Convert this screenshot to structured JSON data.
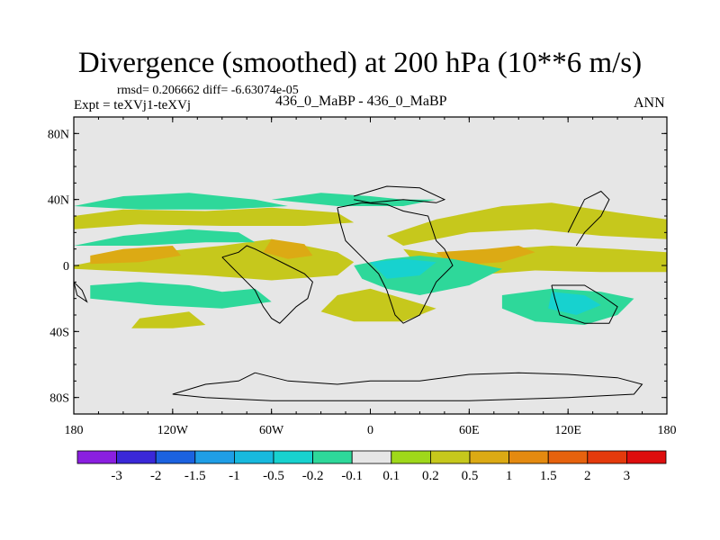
{
  "header": {
    "title": "Divergence (smoothed) at 200 hPa (10**6 m/s)",
    "stats": "rmsd= 0.206662 diff= -6.63074e-05",
    "experiment": "Expt = teXVj1-teXVj",
    "period_label": "436_0_MaBP - 436_0_MaBP",
    "season": "ANN"
  },
  "chart_data": {
    "type": "heatmap",
    "title": "Divergence (smoothed) at 200 hPa (10**6 m/s)",
    "projection": "cylindrical equidistant",
    "xlim": [
      -180,
      180
    ],
    "ylim": [
      -90,
      90
    ],
    "x_ticks": [
      {
        "value": -180,
        "label": "180"
      },
      {
        "value": -120,
        "label": "120W"
      },
      {
        "value": -60,
        "label": "60W"
      },
      {
        "value": 0,
        "label": "0"
      },
      {
        "value": 60,
        "label": "60E"
      },
      {
        "value": 120,
        "label": "120E"
      },
      {
        "value": 180,
        "label": "180"
      }
    ],
    "y_ticks": [
      {
        "value": 80,
        "label": "80N"
      },
      {
        "value": 40,
        "label": "40N"
      },
      {
        "value": 0,
        "label": "0"
      },
      {
        "value": -40,
        "label": "40S"
      },
      {
        "value": -80,
        "label": "80S"
      }
    ],
    "colorbar": {
      "boundaries": [
        "-3",
        "-2",
        "-1.5",
        "-1",
        "-0.5",
        "-0.2",
        "-0.1",
        "0.1",
        "0.2",
        "0.5",
        "1",
        "1.5",
        "2",
        "3"
      ],
      "colors": [
        "#8a1fe0",
        "#3a28d8",
        "#1b62e0",
        "#1f9ee6",
        "#17b9de",
        "#17d2cf",
        "#2ed89a",
        "#e6e6e6",
        "#9fd81a",
        "#c6c81c",
        "#dcaa14",
        "#e48a10",
        "#e6620e",
        "#e43a0c",
        "#de0e0e"
      ]
    },
    "regions": [
      {
        "level": 0.2,
        "points": [
          [
            -180,
            0
          ],
          [
            -150,
            6
          ],
          [
            -120,
            9
          ],
          [
            -90,
            12
          ],
          [
            -60,
            16
          ],
          [
            -40,
            12
          ],
          [
            -20,
            8
          ],
          [
            -10,
            2
          ],
          [
            -20,
            -6
          ],
          [
            -60,
            -9
          ],
          [
            -100,
            -6
          ],
          [
            -140,
            -4
          ],
          [
            -180,
            -2
          ]
        ]
      },
      {
        "level": 0.5,
        "points": [
          [
            -170,
            6
          ],
          [
            -150,
            10
          ],
          [
            -120,
            12
          ],
          [
            -115,
            6
          ],
          [
            -140,
            2
          ],
          [
            -170,
            1
          ]
        ]
      },
      {
        "level": 0.5,
        "points": [
          [
            -60,
            16
          ],
          [
            -40,
            13
          ],
          [
            -35,
            6
          ],
          [
            -50,
            4
          ],
          [
            -65,
            8
          ]
        ]
      },
      {
        "level": 0.2,
        "points": [
          [
            -180,
            30
          ],
          [
            -150,
            34
          ],
          [
            -100,
            33
          ],
          [
            -60,
            35
          ],
          [
            -20,
            32
          ],
          [
            -10,
            26
          ],
          [
            -40,
            24
          ],
          [
            -90,
            24
          ],
          [
            -140,
            25
          ],
          [
            -180,
            22
          ]
        ]
      },
      {
        "level": 0.2,
        "points": [
          [
            10,
            18
          ],
          [
            40,
            28
          ],
          [
            80,
            36
          ],
          [
            110,
            38
          ],
          [
            150,
            32
          ],
          [
            180,
            28
          ],
          [
            180,
            16
          ],
          [
            140,
            18
          ],
          [
            100,
            22
          ],
          [
            60,
            20
          ],
          [
            20,
            12
          ]
        ]
      },
      {
        "level": 0.2,
        "points": [
          [
            20,
            10
          ],
          [
            50,
            6
          ],
          [
            80,
            10
          ],
          [
            110,
            12
          ],
          [
            150,
            10
          ],
          [
            180,
            8
          ],
          [
            180,
            -4
          ],
          [
            140,
            -4
          ],
          [
            100,
            -3
          ],
          [
            60,
            -6
          ],
          [
            30,
            -2
          ]
        ]
      },
      {
        "level": 0.5,
        "points": [
          [
            40,
            8
          ],
          [
            70,
            10
          ],
          [
            90,
            12
          ],
          [
            100,
            8
          ],
          [
            80,
            2
          ],
          [
            50,
            0
          ]
        ]
      },
      {
        "level": 0.2,
        "points": [
          [
            -20,
            -18
          ],
          [
            0,
            -14
          ],
          [
            20,
            -20
          ],
          [
            40,
            -26
          ],
          [
            20,
            -34
          ],
          [
            -10,
            -34
          ],
          [
            -30,
            -28
          ]
        ]
      },
      {
        "level": 0.2,
        "points": [
          [
            -140,
            -32
          ],
          [
            -110,
            -28
          ],
          [
            -100,
            -36
          ],
          [
            -120,
            -38
          ],
          [
            -145,
            -38
          ]
        ]
      },
      {
        "level": -0.2,
        "points": [
          [
            -10,
            0
          ],
          [
            10,
            4
          ],
          [
            30,
            6
          ],
          [
            50,
            4
          ],
          [
            80,
            -2
          ],
          [
            60,
            -12
          ],
          [
            30,
            -18
          ],
          [
            10,
            -14
          ],
          [
            -5,
            -8
          ]
        ]
      },
      {
        "level": -0.5,
        "points": [
          [
            0,
            2
          ],
          [
            20,
            4
          ],
          [
            40,
            2
          ],
          [
            30,
            -6
          ],
          [
            10,
            -8
          ]
        ]
      },
      {
        "level": -0.2,
        "points": [
          [
            -170,
            -12
          ],
          [
            -140,
            -10
          ],
          [
            -110,
            -12
          ],
          [
            -90,
            -16
          ],
          [
            -70,
            -14
          ],
          [
            -60,
            -22
          ],
          [
            -90,
            -26
          ],
          [
            -130,
            -24
          ],
          [
            -170,
            -20
          ]
        ]
      },
      {
        "level": -0.2,
        "points": [
          [
            -180,
            12
          ],
          [
            -150,
            18
          ],
          [
            -110,
            22
          ],
          [
            -80,
            20
          ],
          [
            -70,
            14
          ],
          [
            -100,
            14
          ],
          [
            -140,
            12
          ]
        ]
      },
      {
        "level": -0.2,
        "points": [
          [
            -180,
            36
          ],
          [
            -150,
            42
          ],
          [
            -110,
            44
          ],
          [
            -70,
            40
          ],
          [
            -50,
            36
          ],
          [
            -90,
            34
          ],
          [
            -140,
            34
          ]
        ]
      },
      {
        "level": -0.2,
        "points": [
          [
            80,
            -18
          ],
          [
            110,
            -14
          ],
          [
            140,
            -16
          ],
          [
            160,
            -20
          ],
          [
            150,
            -30
          ],
          [
            130,
            -36
          ],
          [
            100,
            -34
          ],
          [
            80,
            -26
          ]
        ]
      },
      {
        "level": -0.5,
        "points": [
          [
            110,
            -16
          ],
          [
            130,
            -18
          ],
          [
            140,
            -24
          ],
          [
            125,
            -30
          ],
          [
            108,
            -26
          ]
        ]
      },
      {
        "level": -0.2,
        "points": [
          [
            -60,
            40
          ],
          [
            -30,
            44
          ],
          [
            0,
            42
          ],
          [
            20,
            40
          ],
          [
            40,
            40
          ],
          [
            20,
            36
          ],
          [
            -20,
            36
          ]
        ]
      }
    ],
    "coastlines": [
      [
        [
          -90,
          5
        ],
        [
          -80,
          8
        ],
        [
          -75,
          12
        ],
        [
          -70,
          10
        ],
        [
          -60,
          5
        ],
        [
          -50,
          0
        ],
        [
          -40,
          -5
        ],
        [
          -35,
          -10
        ],
        [
          -38,
          -20
        ],
        [
          -45,
          -25
        ],
        [
          -50,
          -30
        ],
        [
          -55,
          -35
        ],
        [
          -60,
          -32
        ],
        [
          -65,
          -25
        ],
        [
          -70,
          -15
        ],
        [
          -80,
          -5
        ],
        [
          -85,
          0
        ],
        [
          -90,
          5
        ]
      ],
      [
        [
          -20,
          35
        ],
        [
          -5,
          38
        ],
        [
          10,
          37
        ],
        [
          20,
          33
        ],
        [
          35,
          30
        ],
        [
          40,
          15
        ],
        [
          45,
          10
        ],
        [
          50,
          0
        ],
        [
          40,
          -10
        ],
        [
          35,
          -20
        ],
        [
          30,
          -30
        ],
        [
          20,
          -35
        ],
        [
          15,
          -30
        ],
        [
          10,
          -15
        ],
        [
          5,
          -5
        ],
        [
          -5,
          5
        ],
        [
          -15,
          15
        ],
        [
          -18,
          25
        ],
        [
          -20,
          35
        ]
      ],
      [
        [
          -10,
          42
        ],
        [
          10,
          48
        ],
        [
          30,
          47
        ],
        [
          45,
          40
        ],
        [
          40,
          38
        ],
        [
          20,
          40
        ],
        [
          0,
          38
        ],
        [
          -10,
          40
        ]
      ],
      [
        [
          125,
          12
        ],
        [
          130,
          20
        ],
        [
          140,
          30
        ],
        [
          145,
          40
        ],
        [
          140,
          45
        ],
        [
          130,
          40
        ],
        [
          125,
          30
        ],
        [
          120,
          20
        ]
      ],
      [
        [
          110,
          -12
        ],
        [
          130,
          -12
        ],
        [
          140,
          -18
        ],
        [
          150,
          -25
        ],
        [
          145,
          -35
        ],
        [
          130,
          -35
        ],
        [
          115,
          -30
        ],
        [
          112,
          -20
        ],
        [
          110,
          -12
        ]
      ],
      [
        [
          -70,
          -65
        ],
        [
          -50,
          -70
        ],
        [
          -20,
          -72
        ],
        [
          0,
          -70
        ],
        [
          30,
          -70
        ],
        [
          60,
          -66
        ],
        [
          90,
          -65
        ],
        [
          120,
          -66
        ],
        [
          150,
          -68
        ],
        [
          165,
          -72
        ],
        [
          160,
          -78
        ],
        [
          120,
          -80
        ],
        [
          60,
          -82
        ],
        [
          0,
          -82
        ],
        [
          -60,
          -82
        ],
        [
          -100,
          -80
        ],
        [
          -120,
          -78
        ],
        [
          -100,
          -72
        ],
        [
          -80,
          -70
        ],
        [
          -70,
          -65
        ]
      ],
      [
        [
          -180,
          -10
        ],
        [
          -175,
          -15
        ],
        [
          -172,
          -22
        ],
        [
          -178,
          -18
        ],
        [
          -180,
          -10
        ]
      ]
    ]
  }
}
